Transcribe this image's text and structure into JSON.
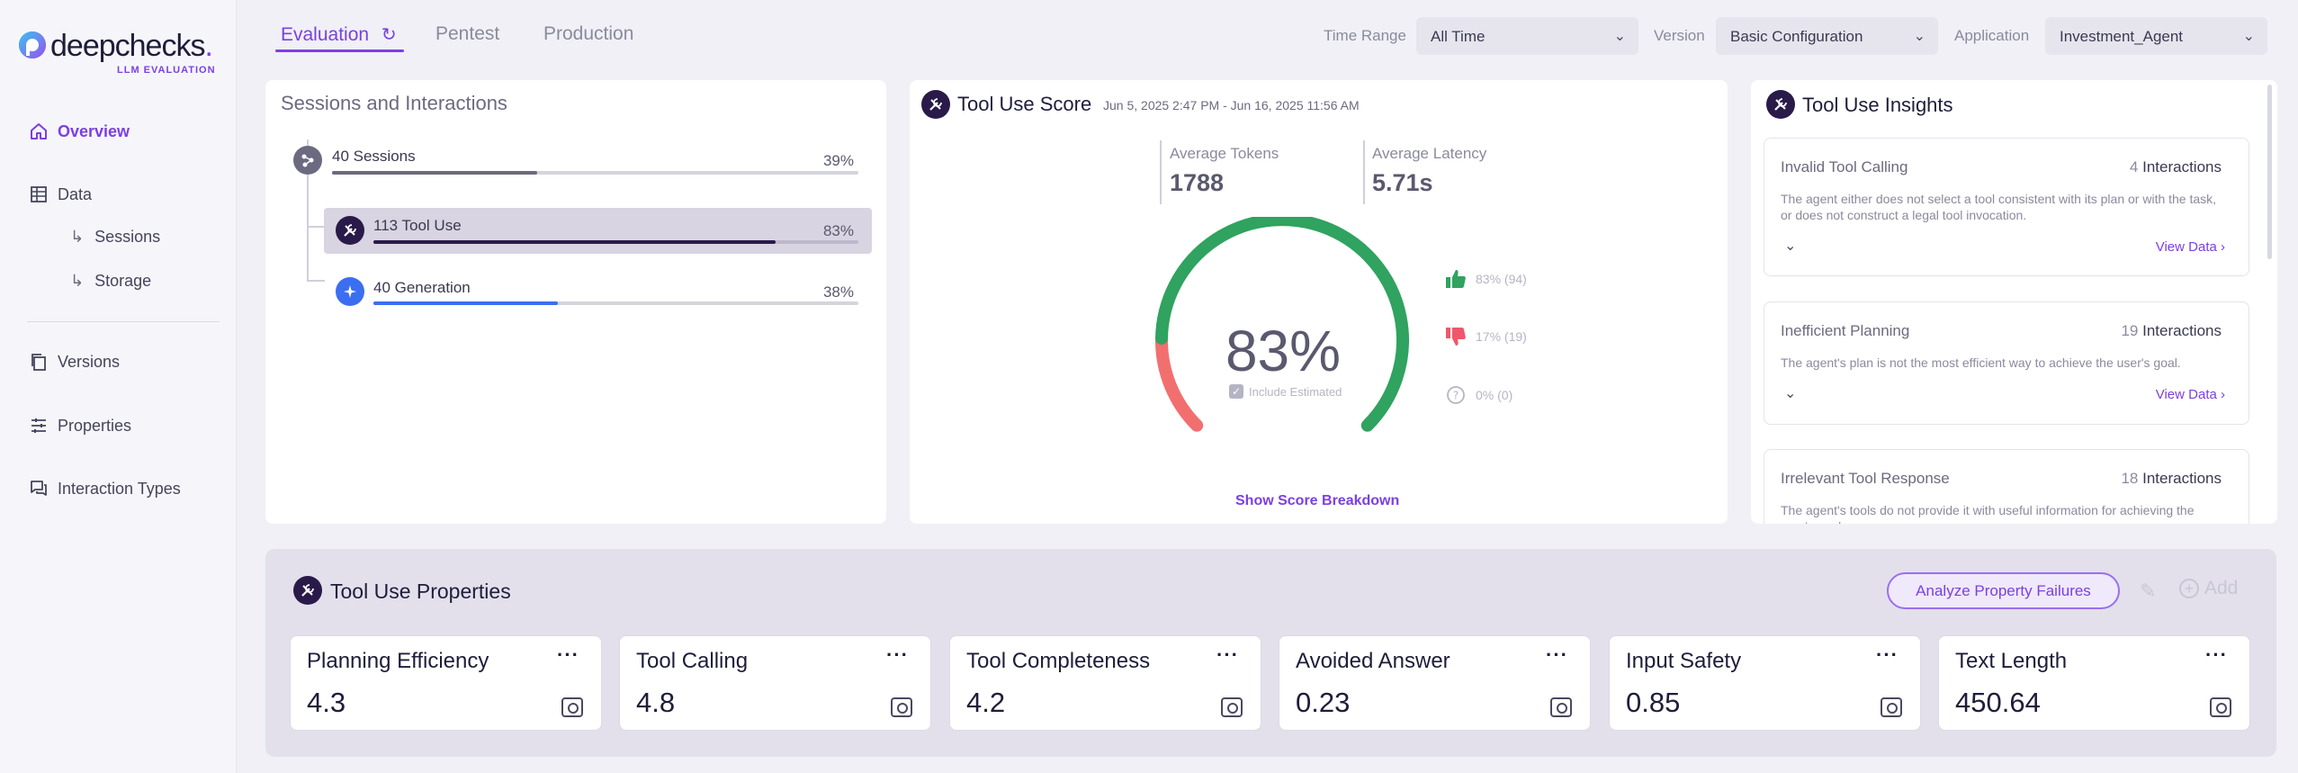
{
  "brand": {
    "word_a": "deep",
    "word_b": "checks",
    "sub": "LLM EVALUATION",
    "accent": "#7b3fe4"
  },
  "sidebar": {
    "items": [
      {
        "label": "Overview",
        "icon": "home-icon",
        "active": true
      },
      {
        "label": "Data",
        "icon": "table-icon"
      },
      {
        "label": "Sessions",
        "icon": "sub-arrow-icon",
        "sub": true
      },
      {
        "label": "Storage",
        "icon": "sub-arrow-icon",
        "sub": true
      },
      {
        "label": "Versions",
        "icon": "copy-icon"
      },
      {
        "label": "Properties",
        "icon": "sliders-icon"
      },
      {
        "label": "Interaction Types",
        "icon": "chat-icon"
      }
    ]
  },
  "tabs": [
    {
      "label": "Evaluation",
      "active": true
    },
    {
      "label": "Pentest"
    },
    {
      "label": "Production"
    }
  ],
  "filters": {
    "time_range": {
      "label": "Time Range",
      "value": "All Time"
    },
    "version": {
      "label": "Version",
      "value": "Basic Configuration"
    },
    "application": {
      "label": "Application",
      "value": "Investment_Agent"
    }
  },
  "sessions": {
    "title": "Sessions and Interactions",
    "rows": [
      {
        "label": "40 Sessions",
        "pct": "39%",
        "fraction": 0.39,
        "color": "#6b6a80"
      },
      {
        "label": "113 Tool Use",
        "pct": "83%",
        "fraction": 0.83,
        "color": "#2a1a4a",
        "selected": true
      },
      {
        "label": "40 Generation",
        "pct": "38%",
        "fraction": 0.38,
        "color": "#3b6ef0"
      }
    ]
  },
  "score": {
    "title": "Tool Use Score",
    "date_range": "Jun 5, 2025 2:47 PM - Jun 16, 2025 11:56 AM",
    "avg_tokens_label": "Average Tokens",
    "avg_tokens": "1788",
    "avg_latency_label": "Average Latency",
    "avg_latency": "5.71s",
    "value": "83%",
    "fraction": 0.83,
    "include_estimated": "Include Estimated",
    "legend": [
      {
        "label": "83% (94)",
        "icon": "thumbs-up-icon",
        "color": "#2fa35f"
      },
      {
        "label": "17% (19)",
        "icon": "thumbs-down-icon",
        "color": "#f0576b"
      },
      {
        "label": "0% (0)",
        "icon": "question-icon",
        "color": "#b5b4c4"
      }
    ],
    "breakdown_link": "Show Score Breakdown",
    "colors": {
      "good": "#2fa35f",
      "bad": "#f26f6f"
    }
  },
  "insights": {
    "title": "Tool Use Insights",
    "items": [
      {
        "name": "Invalid Tool Calling",
        "count": "4",
        "unit": "Interactions",
        "desc": "The agent either does not select a tool consistent with its plan or with the task, or does not construct a legal tool invocation.",
        "link": "View Data ›"
      },
      {
        "name": "Inefficient Planning",
        "count": "19",
        "unit": "Interactions",
        "desc": "The agent's plan is not the most efficient way to achieve the user's goal.",
        "link": "View Data ›"
      },
      {
        "name": "Irrelevant Tool Response",
        "count": "18",
        "unit": "Interactions",
        "desc": "The agent's tools do not provide it with useful information for achieving the user's goal"
      }
    ]
  },
  "properties": {
    "title": "Tool Use Properties",
    "analyze_button": "Analyze Property Failures",
    "add_label": "Add",
    "cards": [
      {
        "name": "Planning Efficiency",
        "value": "4.3"
      },
      {
        "name": "Tool Calling",
        "value": "4.8"
      },
      {
        "name": "Tool Completeness",
        "value": "4.2"
      },
      {
        "name": "Avoided Answer",
        "value": "0.23"
      },
      {
        "name": "Input Safety",
        "value": "0.85"
      },
      {
        "name": "Text Length",
        "value": "450.64"
      }
    ],
    "menu_glyph": "···"
  }
}
